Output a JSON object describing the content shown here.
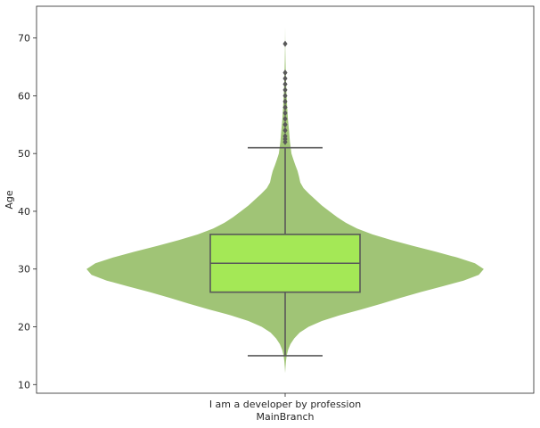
{
  "chart_data": {
    "type": "violin",
    "xlabel": "MainBranch",
    "ylabel": "Age",
    "categories": [
      "I am a developer by profession"
    ],
    "ylim": [
      8.5,
      75.5
    ],
    "yticks": [
      10,
      20,
      30,
      40,
      50,
      60,
      70
    ],
    "grid": false,
    "colors": {
      "violin": "#a0c476",
      "box": "#a4e856",
      "lines": "#595959",
      "outlier": "#595959"
    },
    "box": {
      "whisker_low": 15,
      "q1": 26,
      "median": 31,
      "q3": 36,
      "whisker_high": 51
    },
    "outliers": [
      52,
      52.5,
      53,
      54,
      55,
      56,
      57,
      58,
      59,
      60,
      61,
      62,
      63,
      64,
      69
    ],
    "density": [
      [
        12,
        0.0
      ],
      [
        13,
        0.3
      ],
      [
        14,
        0.6
      ],
      [
        15,
        1.2
      ],
      [
        16,
        2.3
      ],
      [
        17,
        4.2
      ],
      [
        18,
        7.2
      ],
      [
        19,
        11.5
      ],
      [
        20,
        18.5
      ],
      [
        21,
        29.0
      ],
      [
        22,
        43.0
      ],
      [
        23,
        60.0
      ],
      [
        24,
        76.0
      ],
      [
        25,
        91.0
      ],
      [
        26,
        107.0
      ],
      [
        27,
        124.0
      ],
      [
        28,
        141.0
      ],
      [
        29,
        153.0
      ],
      [
        30,
        157.0
      ],
      [
        31,
        150.0
      ],
      [
        32,
        136.0
      ],
      [
        33,
        119.0
      ],
      [
        34,
        101.0
      ],
      [
        35,
        84.0
      ],
      [
        36,
        69.0
      ],
      [
        37,
        57.0
      ],
      [
        38,
        48.0
      ],
      [
        39,
        41.0
      ],
      [
        40,
        35.0
      ],
      [
        41,
        29.0
      ],
      [
        42,
        24.0
      ],
      [
        43,
        19.0
      ],
      [
        44,
        14.5
      ],
      [
        45,
        12.0
      ],
      [
        46,
        11.0
      ],
      [
        47,
        9.8
      ],
      [
        48,
        8.0
      ],
      [
        49,
        6.5
      ],
      [
        50,
        5.0
      ],
      [
        52,
        3.8
      ],
      [
        54,
        3.0
      ],
      [
        56,
        2.2
      ],
      [
        58,
        1.6
      ],
      [
        60,
        1.1
      ],
      [
        62,
        0.8
      ],
      [
        64,
        0.5
      ],
      [
        66,
        0.3
      ],
      [
        68,
        0.15
      ],
      [
        70,
        0.08
      ],
      [
        72,
        0.0
      ]
    ]
  }
}
